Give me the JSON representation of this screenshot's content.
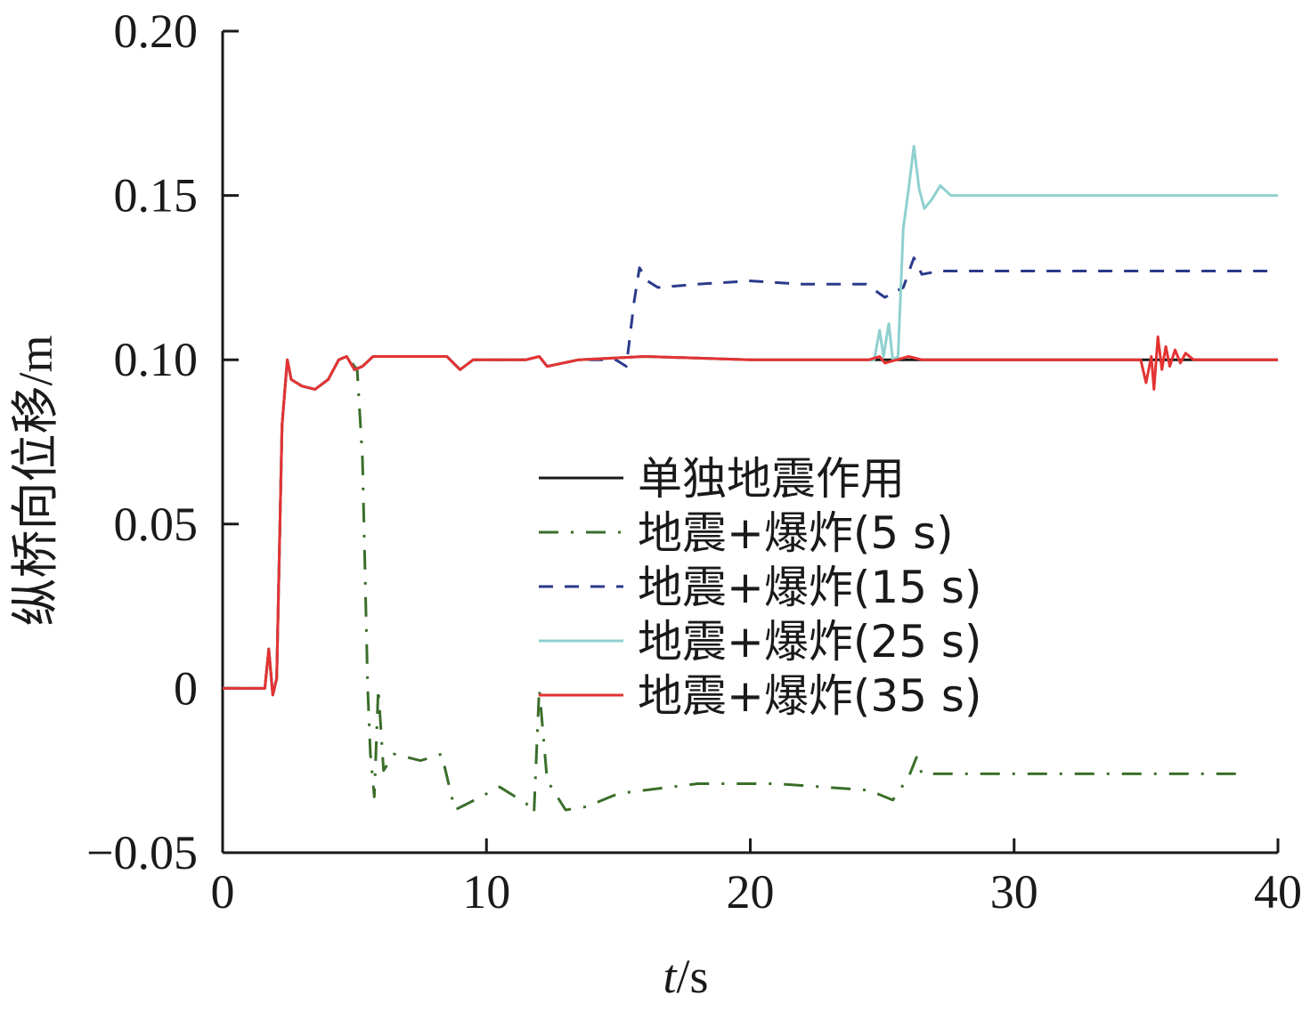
{
  "chart_data": {
    "type": "line",
    "xlabel_italic": "t",
    "xlabel_rest": "/s",
    "ylabel": "纵桥向位移/m",
    "xlim": [
      0,
      40
    ],
    "ylim": [
      -0.05,
      0.2
    ],
    "x_ticks": [
      0,
      10,
      20,
      30,
      40
    ],
    "x_tick_labels": [
      "0",
      "10",
      "20",
      "30",
      "40"
    ],
    "y_ticks": [
      -0.05,
      0,
      0.05,
      0.1,
      0.15,
      0.2
    ],
    "y_tick_labels": [
      "−0.05",
      "0",
      "0.05",
      "0.10",
      "0.15",
      "0.20"
    ],
    "grid": false,
    "legend_position": "center-right",
    "series": [
      {
        "name": "单独地震作用",
        "color": "#1a1a1a",
        "dash": "solid",
        "points": [
          [
            0,
            0
          ],
          [
            1.6,
            0
          ],
          [
            1.75,
            0.012
          ],
          [
            1.9,
            -0.002
          ],
          [
            2.05,
            0.003
          ],
          [
            2.25,
            0.08
          ],
          [
            2.45,
            0.1
          ],
          [
            2.6,
            0.094
          ],
          [
            3.0,
            0.092
          ],
          [
            3.5,
            0.091
          ],
          [
            4.0,
            0.094
          ],
          [
            4.4,
            0.1
          ],
          [
            4.7,
            0.101
          ],
          [
            5.0,
            0.097
          ],
          [
            5.3,
            0.098
          ],
          [
            5.7,
            0.101
          ],
          [
            6.5,
            0.101
          ],
          [
            8.5,
            0.101
          ],
          [
            9.0,
            0.097
          ],
          [
            9.5,
            0.1
          ],
          [
            11.5,
            0.1
          ],
          [
            12.0,
            0.101
          ],
          [
            12.3,
            0.098
          ],
          [
            13.5,
            0.1
          ],
          [
            16,
            0.101
          ],
          [
            20,
            0.1
          ],
          [
            26.5,
            0.1
          ],
          [
            30,
            0.1
          ],
          [
            35,
            0.1
          ],
          [
            40,
            0.1
          ]
        ]
      },
      {
        "name": "地震+爆炸(5 s)",
        "color": "#3a6e2a",
        "dash": "dashdot",
        "points": [
          [
            0,
            0
          ],
          [
            1.6,
            0
          ],
          [
            1.75,
            0.012
          ],
          [
            1.9,
            -0.002
          ],
          [
            2.05,
            0.003
          ],
          [
            2.25,
            0.08
          ],
          [
            2.45,
            0.1
          ],
          [
            2.6,
            0.094
          ],
          [
            3.0,
            0.092
          ],
          [
            3.5,
            0.091
          ],
          [
            4.0,
            0.094
          ],
          [
            4.4,
            0.1
          ],
          [
            4.7,
            0.101
          ],
          [
            5.1,
            0.097
          ],
          [
            5.3,
            0.07
          ],
          [
            5.5,
            0.0
          ],
          [
            5.6,
            -0.02
          ],
          [
            5.75,
            -0.033
          ],
          [
            5.9,
            0.0
          ],
          [
            6.1,
            -0.025
          ],
          [
            6.5,
            -0.02
          ],
          [
            7.5,
            -0.022
          ],
          [
            8.3,
            -0.02
          ],
          [
            8.8,
            -0.037
          ],
          [
            9.3,
            -0.035
          ],
          [
            10.5,
            -0.03
          ],
          [
            11.5,
            -0.035
          ],
          [
            11.8,
            -0.038
          ],
          [
            12.0,
            0.0
          ],
          [
            12.3,
            -0.028
          ],
          [
            13.0,
            -0.037
          ],
          [
            13.8,
            -0.036
          ],
          [
            15,
            -0.032
          ],
          [
            18,
            -0.029
          ],
          [
            21,
            -0.029
          ],
          [
            24.5,
            -0.031
          ],
          [
            25.4,
            -0.034
          ],
          [
            26.0,
            -0.027
          ],
          [
            26.3,
            -0.021
          ],
          [
            26.5,
            -0.026
          ],
          [
            30,
            -0.026
          ],
          [
            38.5,
            -0.026
          ]
        ]
      },
      {
        "name": "地震+爆炸(15 s)",
        "color": "#2b3a8a",
        "dash": "dashed",
        "points": [
          [
            0,
            0
          ],
          [
            1.6,
            0
          ],
          [
            1.75,
            0.012
          ],
          [
            1.9,
            -0.002
          ],
          [
            2.05,
            0.003
          ],
          [
            2.25,
            0.08
          ],
          [
            2.45,
            0.1
          ],
          [
            2.6,
            0.094
          ],
          [
            3.0,
            0.092
          ],
          [
            3.5,
            0.091
          ],
          [
            4.0,
            0.094
          ],
          [
            4.4,
            0.1
          ],
          [
            4.7,
            0.101
          ],
          [
            5.0,
            0.097
          ],
          [
            5.3,
            0.098
          ],
          [
            5.7,
            0.101
          ],
          [
            6.5,
            0.101
          ],
          [
            8.5,
            0.101
          ],
          [
            9.0,
            0.097
          ],
          [
            9.5,
            0.1
          ],
          [
            11.5,
            0.1
          ],
          [
            12.0,
            0.101
          ],
          [
            12.3,
            0.098
          ],
          [
            13.5,
            0.1
          ],
          [
            14.9,
            0.1
          ],
          [
            15.3,
            0.098
          ],
          [
            15.6,
            0.118
          ],
          [
            15.8,
            0.128
          ],
          [
            16.1,
            0.124
          ],
          [
            16.5,
            0.122
          ],
          [
            18,
            0.123
          ],
          [
            20,
            0.124
          ],
          [
            22,
            0.123
          ],
          [
            24.4,
            0.123
          ],
          [
            25.1,
            0.119
          ],
          [
            25.8,
            0.122
          ],
          [
            26.2,
            0.131
          ],
          [
            26.5,
            0.126
          ],
          [
            27.2,
            0.127
          ],
          [
            30,
            0.127
          ],
          [
            40,
            0.127
          ]
        ]
      },
      {
        "name": "地震+爆炸(25 s)",
        "color": "#8fd0cf",
        "dash": "solid",
        "points": [
          [
            0,
            0
          ],
          [
            1.6,
            0
          ],
          [
            1.75,
            0.012
          ],
          [
            1.9,
            -0.002
          ],
          [
            2.05,
            0.003
          ],
          [
            2.25,
            0.08
          ],
          [
            2.45,
            0.1
          ],
          [
            2.6,
            0.094
          ],
          [
            3.0,
            0.092
          ],
          [
            3.5,
            0.091
          ],
          [
            4.0,
            0.094
          ],
          [
            4.4,
            0.1
          ],
          [
            4.7,
            0.101
          ],
          [
            5.0,
            0.097
          ],
          [
            5.3,
            0.098
          ],
          [
            5.7,
            0.101
          ],
          [
            6.5,
            0.101
          ],
          [
            8.5,
            0.101
          ],
          [
            9.0,
            0.097
          ],
          [
            9.5,
            0.1
          ],
          [
            11.5,
            0.1
          ],
          [
            12.0,
            0.101
          ],
          [
            12.3,
            0.098
          ],
          [
            13.5,
            0.1
          ],
          [
            16,
            0.101
          ],
          [
            20,
            0.1
          ],
          [
            24.7,
            0.1
          ],
          [
            24.9,
            0.109
          ],
          [
            25.05,
            0.101
          ],
          [
            25.25,
            0.111
          ],
          [
            25.4,
            0.1
          ],
          [
            25.6,
            0.101
          ],
          [
            25.8,
            0.14
          ],
          [
            26.0,
            0.152
          ],
          [
            26.2,
            0.165
          ],
          [
            26.4,
            0.152
          ],
          [
            26.6,
            0.146
          ],
          [
            26.9,
            0.149
          ],
          [
            27.2,
            0.153
          ],
          [
            27.6,
            0.15
          ],
          [
            30,
            0.15
          ],
          [
            40,
            0.15
          ]
        ]
      },
      {
        "name": "地震+爆炸(35 s)",
        "color": "#e53232",
        "dash": "solid",
        "points": [
          [
            0,
            0
          ],
          [
            1.6,
            0
          ],
          [
            1.75,
            0.012
          ],
          [
            1.9,
            -0.002
          ],
          [
            2.05,
            0.003
          ],
          [
            2.25,
            0.08
          ],
          [
            2.45,
            0.1
          ],
          [
            2.6,
            0.094
          ],
          [
            3.0,
            0.092
          ],
          [
            3.5,
            0.091
          ],
          [
            4.0,
            0.094
          ],
          [
            4.4,
            0.1
          ],
          [
            4.7,
            0.101
          ],
          [
            5.0,
            0.097
          ],
          [
            5.3,
            0.098
          ],
          [
            5.7,
            0.101
          ],
          [
            6.5,
            0.101
          ],
          [
            8.5,
            0.101
          ],
          [
            9.0,
            0.097
          ],
          [
            9.5,
            0.1
          ],
          [
            11.5,
            0.1
          ],
          [
            12.0,
            0.101
          ],
          [
            12.3,
            0.098
          ],
          [
            13.5,
            0.1
          ],
          [
            16,
            0.101
          ],
          [
            20,
            0.1
          ],
          [
            24.5,
            0.1
          ],
          [
            24.9,
            0.101
          ],
          [
            25.1,
            0.099
          ],
          [
            26.0,
            0.101
          ],
          [
            26.5,
            0.1
          ],
          [
            30,
            0.1
          ],
          [
            34.8,
            0.1
          ],
          [
            35.0,
            0.093
          ],
          [
            35.2,
            0.101
          ],
          [
            35.3,
            0.091
          ],
          [
            35.45,
            0.107
          ],
          [
            35.6,
            0.097
          ],
          [
            35.75,
            0.104
          ],
          [
            35.9,
            0.098
          ],
          [
            36.1,
            0.103
          ],
          [
            36.3,
            0.099
          ],
          [
            36.5,
            0.102
          ],
          [
            36.8,
            0.1
          ],
          [
            37.5,
            0.1
          ],
          [
            40,
            0.1
          ]
        ]
      }
    ]
  }
}
